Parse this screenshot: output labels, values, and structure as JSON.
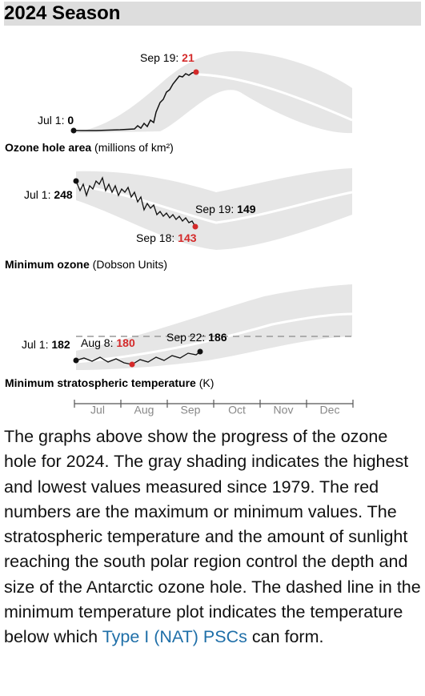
{
  "header": {
    "title": "2024 Season"
  },
  "panels": [
    {
      "label": "Ozone hole area",
      "unit": "(millions of km²)",
      "annotations": [
        {
          "date": "Sep 19: ",
          "value": "21"
        },
        {
          "date": "Jul 1: ",
          "value": "0"
        }
      ]
    },
    {
      "label": "Minimum ozone",
      "unit": "(Dobson Units)",
      "annotations": [
        {
          "date": "Jul 1: ",
          "value": "248"
        },
        {
          "date": "Sep 19: ",
          "value": "149"
        },
        {
          "date": "Sep 18: ",
          "value": "143"
        }
      ]
    },
    {
      "label": "Minimum stratospheric temperature",
      "unit": "(K)",
      "annotations": [
        {
          "date": "Jul 1: ",
          "value": "182"
        },
        {
          "date": "Aug 8: ",
          "value": "180"
        },
        {
          "date": "Sep 22: ",
          "value": "186"
        }
      ]
    }
  ],
  "months": [
    "Jul",
    "Aug",
    "Sep",
    "Oct",
    "Nov",
    "Dec"
  ],
  "description": {
    "text": "The graphs above show the progress of the ozone hole for 2024. The gray shading indicates the highest and lowest values measured since 1979. The red numbers are the maximum or minimum values. The stratospheric temperature and the amount of sunlight reaching the south polar region control the depth and size of the Antarctic ozone hole. The dashed line in the minimum temperature plot indicates the temperature below which ",
    "link": "Type I (NAT) PSCs",
    "tail": " can form."
  }
}
